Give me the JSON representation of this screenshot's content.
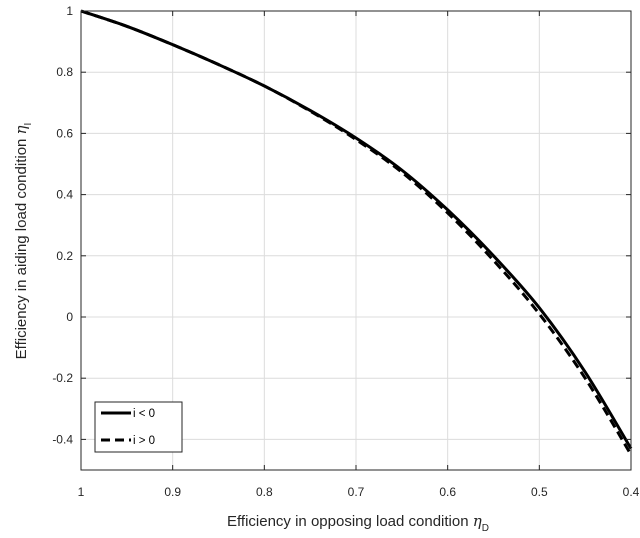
{
  "chart_data": {
    "type": "line",
    "xlabel": "Efficiency in opposing load condition",
    "xlabel_symbol": "η",
    "xlabel_sub": "D",
    "ylabel": "Efficiency in aiding load condition",
    "ylabel_symbol": "η",
    "ylabel_sub": "I",
    "xlim": [
      0.4,
      1
    ],
    "ylim": [
      -0.5,
      1
    ],
    "x_reversed": true,
    "grid": true,
    "legend_position": "bottom-left",
    "xticks": [
      1,
      0.9,
      0.8,
      0.7,
      0.6,
      0.5,
      0.4
    ],
    "xtick_labels": [
      "1",
      "0.9",
      "0.8",
      "0.7",
      "0.6",
      "0.5",
      "0.4"
    ],
    "yticks": [
      1,
      0.8,
      0.6,
      0.4,
      0.2,
      0,
      -0.2,
      -0.4
    ],
    "ytick_labels": [
      "1",
      "0.8",
      "0.6",
      "0.4",
      "0.2",
      "0",
      "-0.2",
      "-0.4"
    ],
    "series": [
      {
        "name": "i < 0",
        "style": "solid",
        "color": "#000000",
        "x": [
          1.0,
          0.95,
          0.9,
          0.85,
          0.8,
          0.75,
          0.7,
          0.65,
          0.6,
          0.55,
          0.5,
          0.45,
          0.4
        ],
        "y": [
          1.0,
          0.95,
          0.89,
          0.825,
          0.755,
          0.675,
          0.585,
          0.48,
          0.35,
          0.2,
          0.03,
          -0.18,
          -0.43
        ]
      },
      {
        "name": "i > 0",
        "style": "dashed",
        "color": "#000000",
        "x": [
          1.0,
          0.95,
          0.9,
          0.85,
          0.8,
          0.75,
          0.7,
          0.65,
          0.6,
          0.55,
          0.5,
          0.45,
          0.4
        ],
        "y": [
          1.0,
          0.95,
          0.89,
          0.825,
          0.755,
          0.673,
          0.58,
          0.473,
          0.34,
          0.185,
          0.01,
          -0.2,
          -0.45
        ]
      }
    ]
  }
}
